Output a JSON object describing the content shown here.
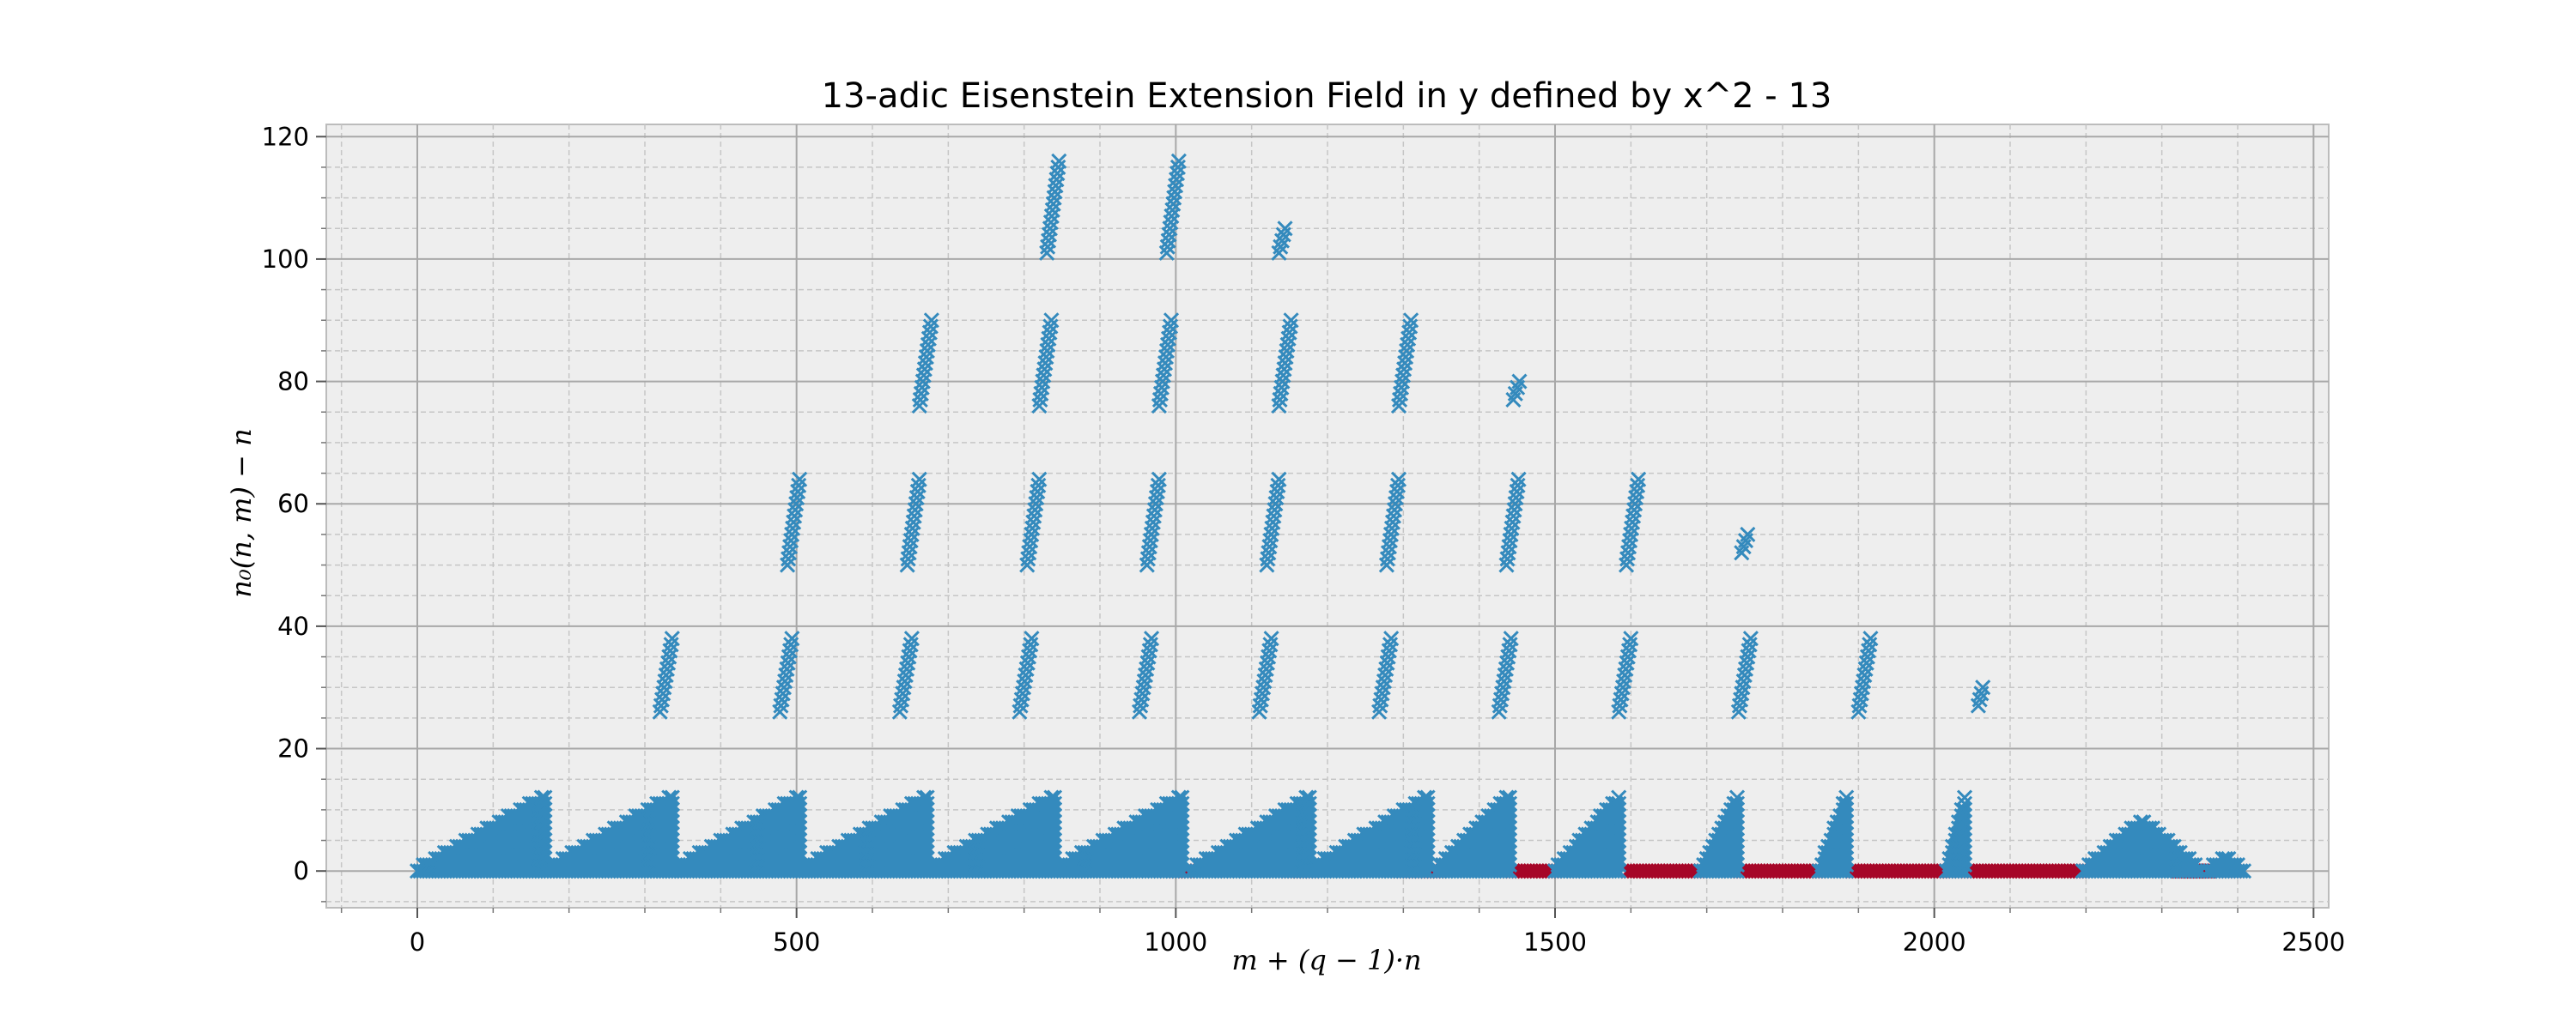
{
  "chart_data": {
    "type": "scatter",
    "title": "13-adic Eisenstein Extension Field in y defined by x^2 - 13",
    "xlabel": "m + (q − 1)·n",
    "ylabel": "n₀(n, m) − n",
    "xlim": [
      -120,
      2520
    ],
    "ylim": [
      -6,
      122
    ],
    "xticks": [
      0,
      500,
      1000,
      1500,
      2000,
      2500
    ],
    "yticks": [
      0,
      20,
      40,
      60,
      80,
      100,
      120
    ],
    "grid": true,
    "legend": "none",
    "colors": {
      "blue": "#348ABD",
      "red": "#A60628",
      "axes_bg": "#EEEEEE"
    },
    "series": [
      {
        "color": "#348ABD",
        "marker": "x",
        "y0_triangles": [
          {
            "x": [
              0,
              168
            ],
            "ymax": 12
          },
          {
            "x": [
              168,
              336
            ],
            "ymax": 12
          },
          {
            "x": [
              336,
              504
            ],
            "ymax": 12
          },
          {
            "x": [
              504,
              672
            ],
            "ymax": 12
          },
          {
            "x": [
              672,
              840
            ],
            "ymax": 12
          },
          {
            "x": [
              840,
              1008
            ],
            "ymax": 12
          },
          {
            "x": [
              1020,
              1176
            ],
            "ymax": 12
          },
          {
            "x": [
              1176,
              1332
            ],
            "ymax": 12
          },
          {
            "x": [
              1344,
              1440
            ],
            "ymax": 12
          },
          {
            "x": [
              1500,
              1584
            ],
            "ymax": 12
          },
          {
            "x": [
              1692,
              1740
            ],
            "ymax": 12
          },
          {
            "x": [
              1848,
              1884
            ],
            "ymax": 12
          },
          {
            "x": [
              2016,
              2040
            ],
            "ymax": 12
          },
          {
            "x": [
              2196,
              2352
            ],
            "ymax": 8,
            "shape": "hump"
          },
          {
            "x": [
              2360,
              2410
            ],
            "ymax": 2,
            "shape": "hump"
          }
        ],
        "columns": [
          {
            "x": [
              320,
              336
            ],
            "y": [
              26,
              38
            ]
          },
          {
            "x": [
              478,
              494
            ],
            "y": [
              26,
              38
            ]
          },
          {
            "x": [
              636,
              652
            ],
            "y": [
              26,
              38
            ]
          },
          {
            "x": [
              794,
              810
            ],
            "y": [
              26,
              38
            ]
          },
          {
            "x": [
              952,
              968
            ],
            "y": [
              26,
              38
            ]
          },
          {
            "x": [
              1110,
              1126
            ],
            "y": [
              26,
              38
            ]
          },
          {
            "x": [
              1268,
              1284
            ],
            "y": [
              26,
              38
            ]
          },
          {
            "x": [
              1426,
              1442
            ],
            "y": [
              26,
              38
            ]
          },
          {
            "x": [
              1584,
              1600
            ],
            "y": [
              26,
              38
            ]
          },
          {
            "x": [
              1742,
              1758
            ],
            "y": [
              26,
              38
            ]
          },
          {
            "x": [
              1900,
              1916
            ],
            "y": [
              26,
              38
            ]
          },
          {
            "x": [
              2058,
              2064
            ],
            "y": [
              27,
              30
            ]
          },
          {
            "x": [
              488,
              504
            ],
            "y": [
              50,
              64
            ]
          },
          {
            "x": [
              646,
              662
            ],
            "y": [
              50,
              64
            ]
          },
          {
            "x": [
              804,
              820
            ],
            "y": [
              50,
              64
            ]
          },
          {
            "x": [
              962,
              978
            ],
            "y": [
              50,
              64
            ]
          },
          {
            "x": [
              1120,
              1136
            ],
            "y": [
              50,
              64
            ]
          },
          {
            "x": [
              1278,
              1294
            ],
            "y": [
              50,
              64
            ]
          },
          {
            "x": [
              1436,
              1452
            ],
            "y": [
              50,
              64
            ]
          },
          {
            "x": [
              1594,
              1610
            ],
            "y": [
              50,
              64
            ]
          },
          {
            "x": [
              1746,
              1754
            ],
            "y": [
              52,
              55
            ]
          },
          {
            "x": [
              662,
              678
            ],
            "y": [
              76,
              90
            ]
          },
          {
            "x": [
              820,
              836
            ],
            "y": [
              76,
              90
            ]
          },
          {
            "x": [
              978,
              994
            ],
            "y": [
              76,
              90
            ]
          },
          {
            "x": [
              1136,
              1152
            ],
            "y": [
              76,
              90
            ]
          },
          {
            "x": [
              1294,
              1310
            ],
            "y": [
              76,
              90
            ]
          },
          {
            "x": [
              1445,
              1453
            ],
            "y": [
              77,
              80
            ]
          },
          {
            "x": [
              830,
              846
            ],
            "y": [
              101,
              116
            ]
          },
          {
            "x": [
              988,
              1004
            ],
            "y": [
              101,
              116
            ]
          },
          {
            "x": [
              1136,
              1144
            ],
            "y": [
              101,
              105
            ]
          }
        ]
      },
      {
        "color": "#A60628",
        "marker": "x",
        "y0_segments": [
          [
            1000,
            1018
          ],
          [
            1148,
            1180
          ],
          [
            1296,
            1350
          ],
          [
            1440,
            1500
          ],
          [
            1596,
            1694
          ],
          [
            1744,
            1848
          ],
          [
            1892,
            2026
          ],
          [
            2044,
            2196
          ],
          [
            2322,
            2362
          ],
          [
            2384,
            2396
          ]
        ]
      }
    ]
  }
}
